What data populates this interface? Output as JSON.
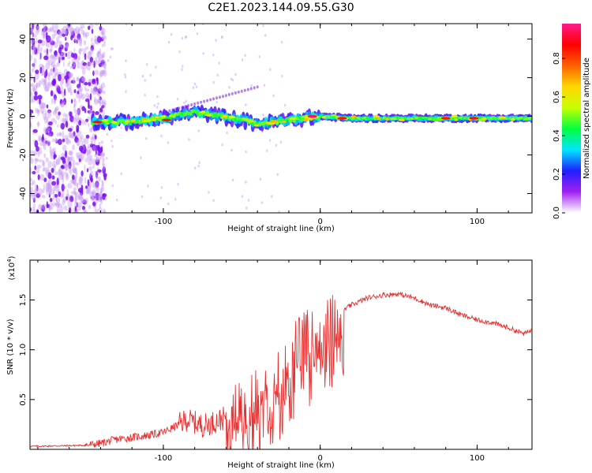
{
  "title": "C2E1.2023.144.09.55.G30",
  "chart_data": [
    {
      "type": "heatmap",
      "xlabel": "Height of straight line (km)",
      "ylabel": "Frequency (Hz)",
      "xlim": [
        -185,
        135
      ],
      "ylim": [
        -50,
        48
      ],
      "x_ticks": [
        -100,
        0,
        100
      ],
      "x_tick_labels": [
        "-100",
        "0",
        "100"
      ],
      "y_ticks": [
        -40,
        -20,
        0,
        20,
        40
      ],
      "y_tick_labels": [
        "-40",
        "-20",
        "0",
        "20",
        "40"
      ],
      "colorbar": {
        "label": "Normalized spectral amplitude",
        "range": [
          0,
          0.98
        ],
        "ticks": [
          0.0,
          0.2,
          0.4,
          0.6,
          0.8
        ],
        "tick_labels": [
          "0.0",
          "0.2",
          "0.4",
          "0.6",
          "0.8"
        ],
        "colormap": [
          "#ffffff",
          "#a020f0",
          "#2020ff",
          "#00e5ff",
          "#00ff40",
          "#c8ff00",
          "#ffd700",
          "#ff6000",
          "#ff0000",
          "#ff1a8c"
        ]
      },
      "ridge": {
        "x": [
          -145,
          -120,
          -100,
          -90,
          -80,
          -70,
          -60,
          -50,
          -40,
          -30,
          -20,
          -10,
          0,
          20,
          40,
          60,
          80,
          100,
          120,
          135
        ],
        "y": [
          -3,
          -3,
          -1,
          1,
          2,
          1,
          -0.5,
          -2,
          -4,
          -3,
          -2,
          -1,
          0,
          -1,
          -1,
          -1,
          -1,
          -1,
          -1,
          -1
        ]
      },
      "peaks": [
        {
          "x": -142,
          "y": -3,
          "value": 0.9
        },
        {
          "x": -98,
          "y": -2,
          "value": 0.85
        },
        {
          "x": -5,
          "y": 0,
          "value": 0.95
        },
        {
          "x": 14,
          "y": -1,
          "value": 0.85
        },
        {
          "x": 80,
          "y": -1,
          "value": 0.85
        },
        {
          "x": 98,
          "y": -1,
          "value": 0.9
        }
      ],
      "noise_region_x": [
        -185,
        -145
      ]
    },
    {
      "type": "line",
      "xlabel": "Height of straight line (km)",
      "ylabel": "SNR (10 * v/v)",
      "y_scale_label": "(x10",
      "y_scale_exp": "4",
      "y_scale_close": ")",
      "xlim": [
        -185,
        135
      ],
      "ylim": [
        0,
        1.9
      ],
      "x_ticks": [
        -100,
        0,
        100
      ],
      "x_tick_labels": [
        "-100",
        "0",
        "100"
      ],
      "y_ticks": [
        0.5,
        1.0,
        1.5
      ],
      "y_tick_labels": [
        "0.5",
        "1.0",
        "1.5"
      ],
      "series": [
        {
          "color": "#e83030",
          "x": [
            -185,
            -150,
            -140,
            -130,
            -120,
            -110,
            -100,
            -90,
            -85,
            -80,
            -75,
            -70,
            -60,
            -50,
            -45,
            -40,
            -35,
            -30,
            -25,
            -20,
            -15,
            -10,
            -5,
            0,
            5,
            10,
            15,
            20,
            30,
            40,
            50,
            60,
            70,
            80,
            90,
            100,
            110,
            120,
            130,
            135
          ],
          "y": [
            0.03,
            0.04,
            0.06,
            0.1,
            0.12,
            0.14,
            0.17,
            0.25,
            0.3,
            0.27,
            0.24,
            0.26,
            0.32,
            0.38,
            0.44,
            0.55,
            0.66,
            0.72,
            0.78,
            0.92,
            1.0,
            1.08,
            1.12,
            1.16,
            1.22,
            1.3,
            1.4,
            1.45,
            1.52,
            1.55,
            1.56,
            1.52,
            1.45,
            1.42,
            1.35,
            1.3,
            1.27,
            1.22,
            1.16,
            1.2
          ]
        }
      ]
    }
  ]
}
